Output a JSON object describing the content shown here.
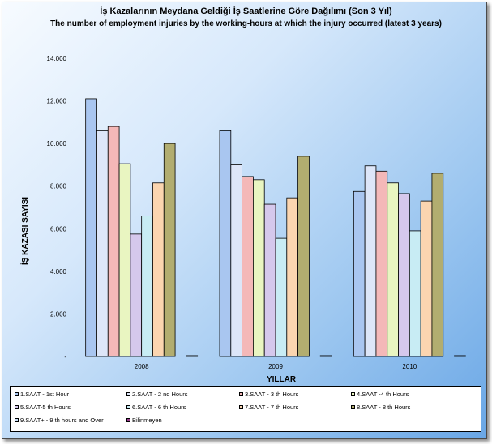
{
  "title": "İş Kazalarının Meydana Geldiği İş Saatlerine Göre Dağılımı (Son 3 Yıl)",
  "subtitle": "The number of employment injuries by the working-hours at which the injury occurred (latest 3 years)",
  "chart_data": {
    "type": "bar",
    "title": "İş Kazalarının Meydana Geldiği İş Saatlerine Göre Dağılımı (Son 3 Yıl)",
    "subtitle": "The number of employment injuries by the working-hours at which the injury occurred (latest 3 years)",
    "xlabel": "YILLAR",
    "ylabel": "İŞ KAZASI SAYISI",
    "categories": [
      "2008",
      "2009",
      "2010"
    ],
    "ylim": [
      0,
      14000
    ],
    "yticks": [
      0,
      2000,
      4000,
      6000,
      8000,
      10000,
      12000,
      14000
    ],
    "ytick_labels": [
      "-",
      "2.000",
      "4.000",
      "6.000",
      "8.000",
      "10.000",
      "12.000",
      "14.000"
    ],
    "grid": false,
    "legend_position": "bottom",
    "series": [
      {
        "name": "1.SAAT - 1st Hour",
        "color": "#a9c6f0",
        "values": [
          12100,
          10600,
          7750
        ]
      },
      {
        "name": "2.SAAT - 2 nd Hours",
        "color": "#dde6f8",
        "values": [
          10600,
          9000,
          8950
        ]
      },
      {
        "name": "3.SAAT - 3 th Hours",
        "color": "#f4b8b8",
        "values": [
          10800,
          8450,
          8700
        ]
      },
      {
        "name": "4.SAAT -4 th  Hours",
        "color": "#e9f5c1",
        "values": [
          9050,
          8300,
          8150
        ]
      },
      {
        "name": "5.SAAT-5 th  Hours",
        "color": "#d5c8ec",
        "values": [
          5750,
          7150,
          7650
        ]
      },
      {
        "name": "6.SAAT - 6 th  Hours",
        "color": "#c8ecf4",
        "values": [
          6600,
          5550,
          5900
        ]
      },
      {
        "name": "7.SAAT - 7 th  Hours",
        "color": "#fbd5b0",
        "values": [
          8150,
          7450,
          7300
        ]
      },
      {
        "name": "8.SAAT - 8 th Hours",
        "color": "#b2ad70",
        "values": [
          10000,
          9400,
          8600
        ]
      },
      {
        "name": "9.SAAT+ - 9 th hours and Over",
        "color": "#c6dcf4",
        "values": [
          0,
          0,
          0
        ]
      },
      {
        "name": "Bilinmeyen",
        "color": "#9a3b8f",
        "values": [
          40,
          40,
          40
        ]
      }
    ]
  }
}
